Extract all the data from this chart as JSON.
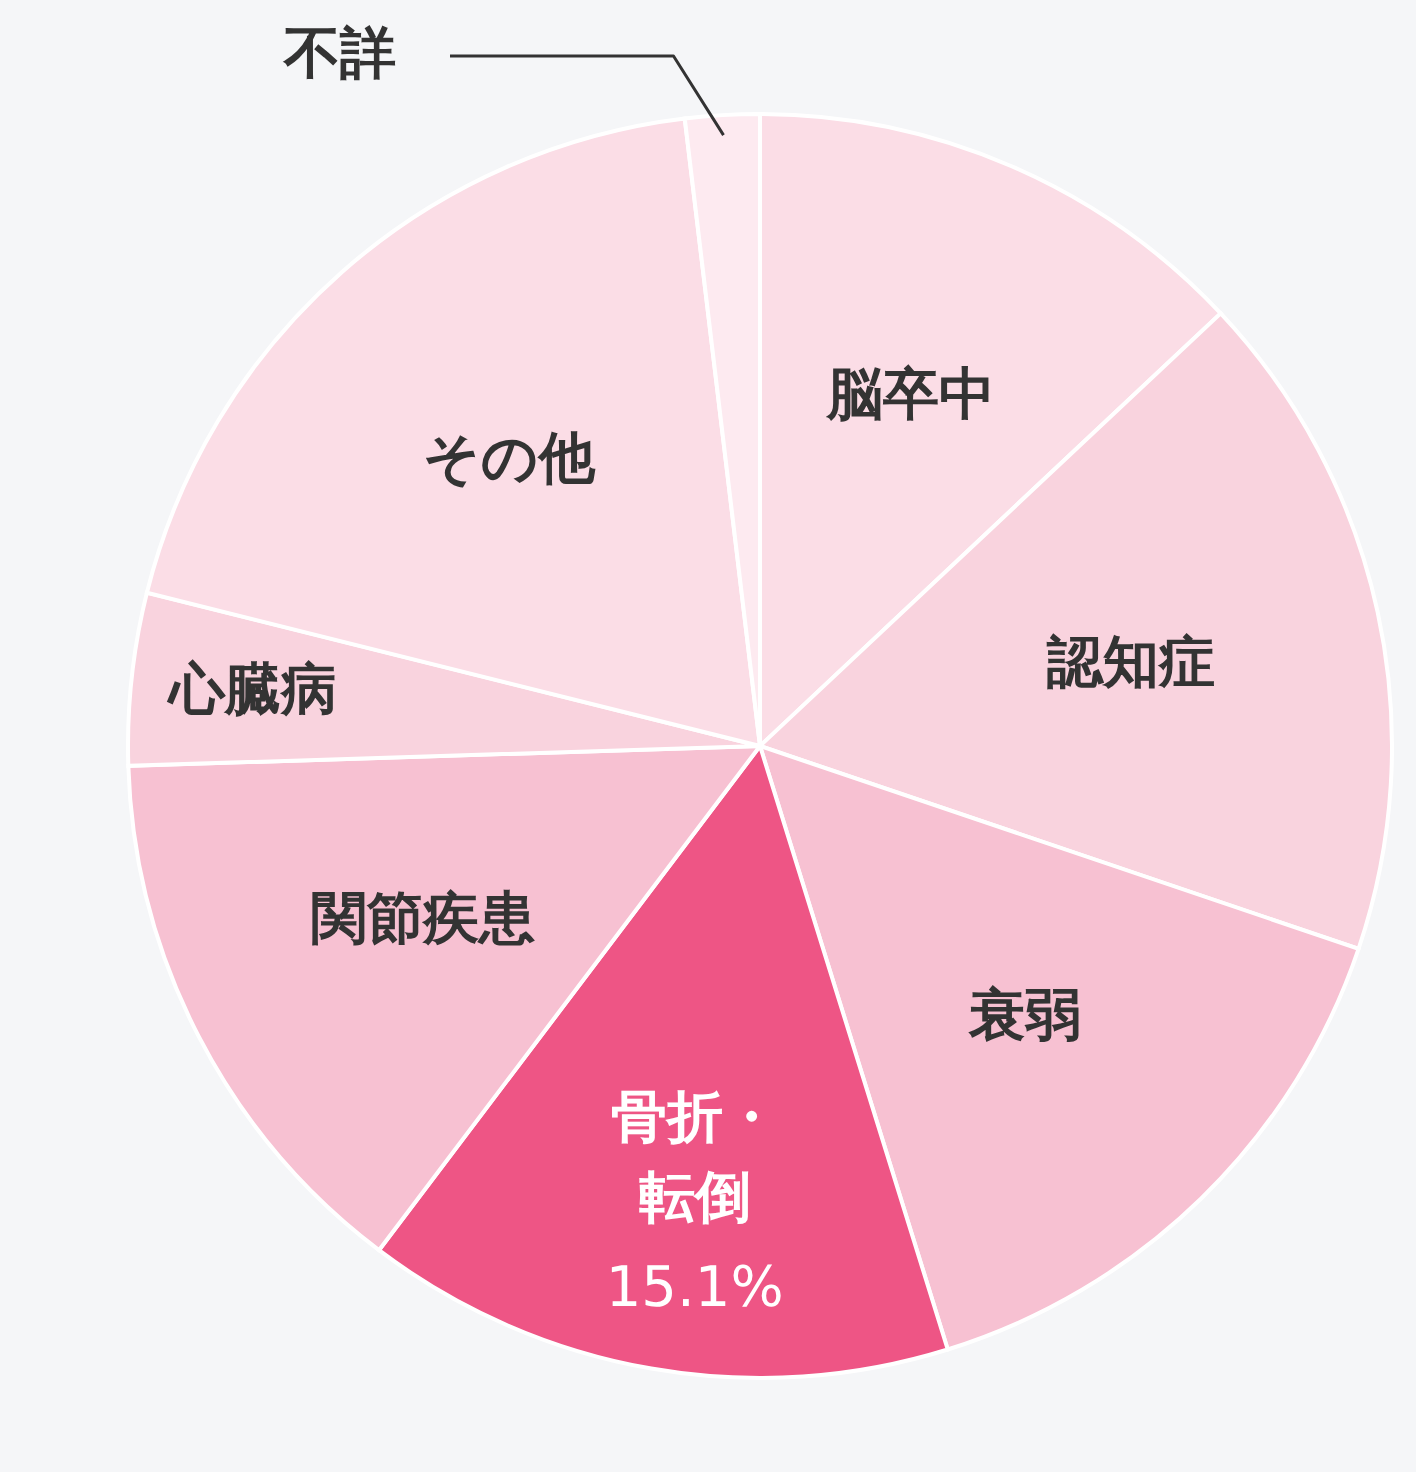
{
  "chart_data": {
    "type": "pie",
    "categories": [
      "脳卒中",
      "認知症",
      "衰弱",
      "骨折・転倒",
      "関節疾患",
      "心臓病",
      "その他",
      "不詳"
    ],
    "values": [
      13.0,
      17.2,
      15.0,
      15.1,
      14.2,
      4.4,
      19.2,
      1.9
    ],
    "colors": [
      "#fbdde6",
      "#f9d3de",
      "#f7c1d2",
      "#ee5585",
      "#f7c1d2",
      "#f9d3de",
      "#fbdde6",
      "#fdeaf0"
    ],
    "value_labels": [
      null,
      null,
      null,
      "15.1%",
      null,
      null,
      null,
      null
    ]
  }
}
